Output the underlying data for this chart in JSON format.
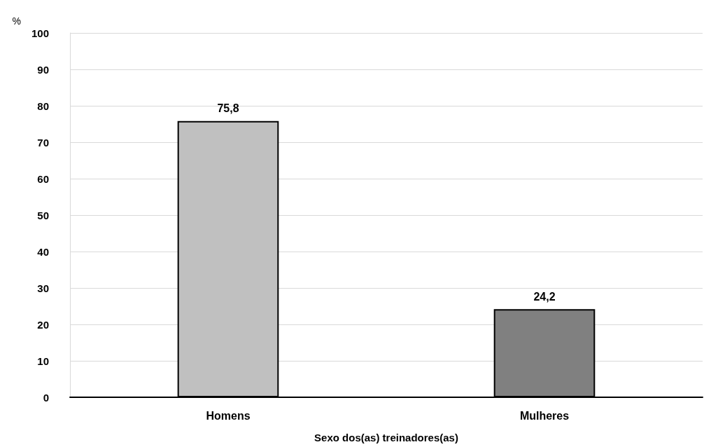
{
  "chart_data": {
    "type": "bar",
    "xlabel": "Sexo dos(as) treinadores(as)",
    "ylabel": "%",
    "categories": [
      "Homens",
      "Mulheres"
    ],
    "values": [
      75.8,
      24.2
    ],
    "colors": [
      "#c0c0c0",
      "#808080"
    ],
    "value_labels": [
      "75,8",
      "24,2"
    ],
    "ylim": [
      0,
      100
    ],
    "yticks": [
      0,
      10,
      20,
      30,
      40,
      50,
      60,
      70,
      80,
      90,
      100
    ],
    "grid": "y"
  }
}
